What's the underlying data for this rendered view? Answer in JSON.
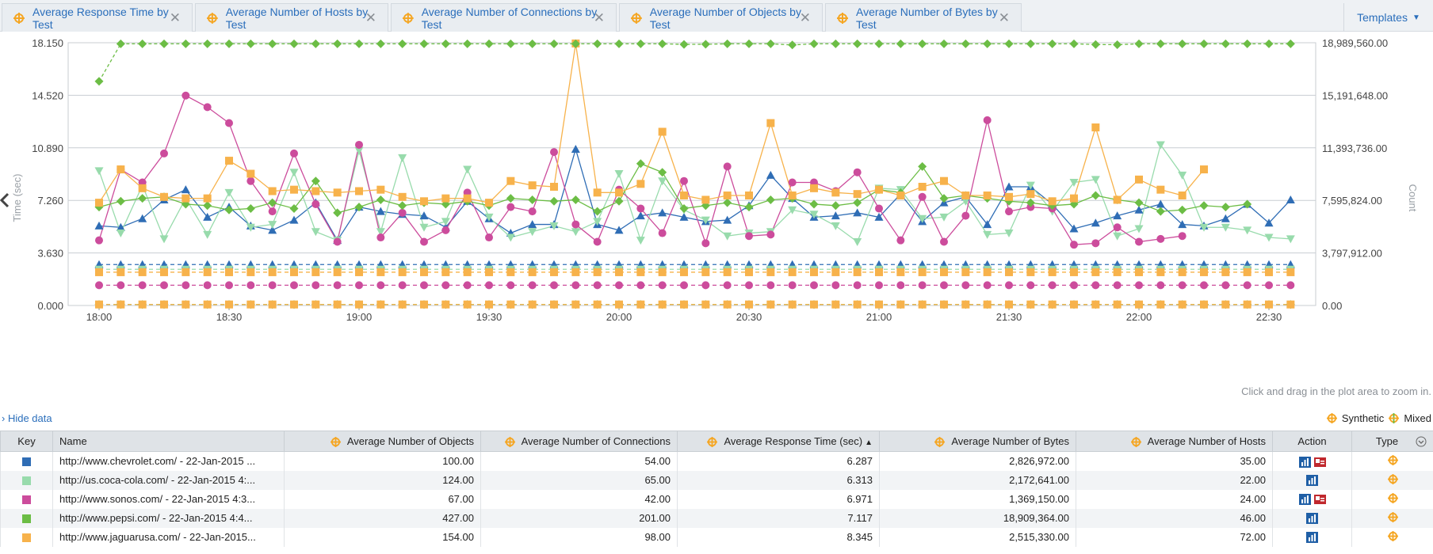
{
  "tabs": [
    {
      "label": "Average Response Time by Test"
    },
    {
      "label": "Average Number of Hosts by Test"
    },
    {
      "label": "Average Number of Connections by Test"
    },
    {
      "label": "Average Number of Objects by Test"
    },
    {
      "label": "Average Number of Bytes by Test"
    }
  ],
  "templates_label": "Templates",
  "colors": {
    "blue": "#2f6db5",
    "lightgreen": "#98dbac",
    "pink": "#cc4c9c",
    "green": "#6cbd45",
    "orange": "#f7b24b",
    "tab_icon": "#f5a623"
  },
  "chart_data": {
    "type": "line",
    "y_left": {
      "label": "Time (sec)",
      "ticks": [
        "0.000",
        "3.630",
        "7.260",
        "10.890",
        "14.520",
        "18.150"
      ],
      "range": [
        0,
        18.15
      ]
    },
    "y_right": {
      "label": "Count",
      "ticks": [
        "0.00",
        "3,797,912.00",
        "7,595,824.00",
        "11,393,736.00",
        "15,191,648.00",
        "18,989,560.00"
      ],
      "range": [
        0,
        18989560
      ]
    },
    "x_ticks": [
      "18:00",
      "18:30",
      "19:00",
      "19:30",
      "20:00",
      "20:30",
      "21:00",
      "21:30",
      "22:00",
      "22:30"
    ],
    "x_start": "18:00",
    "x_step_minutes": 5,
    "series": [
      {
        "color_key": "blue",
        "marker": "triangle",
        "axis": "left",
        "values": [
          5.5,
          5.4,
          6.0,
          7.3,
          8.0,
          6.1,
          6.8,
          5.5,
          5.2,
          5.9,
          7.1,
          4.5,
          6.8,
          6.5,
          6.3,
          6.2,
          5.4,
          7.2,
          6.0,
          5.0,
          5.6,
          5.6,
          10.8,
          5.6,
          5.2,
          6.2,
          6.4,
          6.1,
          5.8,
          5.9,
          6.9,
          9.0,
          7.4,
          6.1,
          6.2,
          6.4,
          6.1,
          7.7,
          5.8,
          7.1,
          7.5,
          5.6,
          8.2,
          8.2,
          7.0,
          5.3,
          5.7,
          6.2,
          6.6,
          7.0,
          5.6,
          5.5,
          6.0,
          7.0,
          5.7,
          7.3
        ]
      },
      {
        "color_key": "lightgreen",
        "marker": "triangle-down",
        "axis": "left",
        "values": [
          9.3,
          5.0,
          8.3,
          4.6,
          7.4,
          4.9,
          7.8,
          5.4,
          5.6,
          9.2,
          5.1,
          4.5,
          10.7,
          5.1,
          10.2,
          5.4,
          5.8,
          9.4,
          6.1,
          4.7,
          5.1,
          5.5,
          5.1,
          5.8,
          9.1,
          4.5,
          8.6,
          6.6,
          5.9,
          4.8,
          5.0,
          5.1,
          6.6,
          6.3,
          5.5,
          4.4,
          8.1,
          8.0,
          6.0,
          6.1,
          7.2,
          4.9,
          5.0,
          8.3,
          6.5,
          8.5,
          8.7,
          4.8,
          5.3,
          11.1,
          9.0,
          5.4,
          5.4,
          5.2,
          4.7,
          4.6
        ]
      },
      {
        "color_key": "pink",
        "marker": "circle",
        "axis": "left",
        "values": [
          4.5,
          9.4,
          8.5,
          10.5,
          14.5,
          13.7,
          12.6,
          8.6,
          6.5,
          10.5,
          7.0,
          4.4,
          11.1,
          4.7,
          6.4,
          4.4,
          5.2,
          7.8,
          4.7,
          6.8,
          6.5,
          10.6,
          5.6,
          4.4,
          8.0,
          6.7,
          5.0,
          8.6,
          4.3,
          9.6,
          4.8,
          4.9,
          8.5,
          8.5,
          7.9,
          9.2,
          6.7,
          4.5,
          7.5,
          4.4,
          6.2,
          12.8,
          6.5,
          6.8,
          6.7,
          4.2,
          4.3,
          5.4,
          4.4,
          4.6,
          4.8
        ]
      },
      {
        "color_key": "green",
        "marker": "diamond",
        "axis": "left",
        "values": [
          6.8,
          7.2,
          7.4,
          7.5,
          7.0,
          6.9,
          6.6,
          6.7,
          7.1,
          6.7,
          8.6,
          6.4,
          6.8,
          7.3,
          6.9,
          7.1,
          7.0,
          7.2,
          6.9,
          7.4,
          7.3,
          7.2,
          7.3,
          6.5,
          7.2,
          9.8,
          9.2,
          6.7,
          6.9,
          7.1,
          6.8,
          7.3,
          7.4,
          7.0,
          6.9,
          7.1,
          8.0,
          7.8,
          9.6,
          7.4,
          7.6,
          7.4,
          7.2,
          7.1,
          6.9,
          7.0,
          7.6,
          7.3,
          7.1,
          6.5,
          6.6,
          6.9,
          6.8,
          7.0
        ]
      },
      {
        "color_key": "orange",
        "marker": "square",
        "axis": "left",
        "values": [
          7.1,
          9.4,
          8.1,
          7.5,
          7.4,
          7.4,
          10.0,
          9.1,
          7.9,
          8.0,
          7.9,
          7.8,
          7.9,
          8.0,
          7.5,
          7.2,
          7.4,
          7.4,
          7.1,
          8.6,
          8.3,
          8.2,
          18.1,
          7.8,
          7.8,
          8.4,
          12.0,
          7.6,
          7.3,
          7.6,
          7.6,
          12.6,
          7.6,
          8.1,
          7.8,
          7.7,
          8.0,
          7.6,
          8.2,
          8.6,
          7.6,
          7.6,
          7.5,
          7.7,
          7.2,
          7.4,
          12.3,
          7.3,
          8.7,
          8.0,
          7.6,
          9.4
        ]
      },
      {
        "color_key": "green",
        "marker": "diamond",
        "axis": "right",
        "dashed_first": true,
        "values": [
          16200000,
          18909364,
          18909364,
          18909364,
          18909364,
          18909364,
          18909364,
          18909364,
          18909364,
          18909364,
          18909364,
          18909364,
          18909364,
          18909364,
          18909364,
          18909364,
          18909364,
          18909364,
          18909364,
          18909364,
          18909364,
          18909364,
          18909364,
          18909364,
          18909364,
          18909364,
          18909364,
          18870000,
          18880000,
          18909364,
          18909364,
          18909364,
          18830000,
          18909364,
          18909364,
          18909364,
          18909364,
          18909364,
          18909364,
          18909364,
          18909364,
          18909364,
          18909364,
          18909364,
          18909364,
          18909364,
          18860000,
          18850000,
          18909364,
          18909364,
          18909364,
          18909364,
          18909364,
          18909364,
          18909364,
          18909364
        ]
      },
      {
        "color_key": "blue",
        "marker": "triangle",
        "axis": "left",
        "dashed": true,
        "flat": 2.83
      },
      {
        "color_key": "lightgreen",
        "marker": "triangle-down",
        "axis": "left",
        "dashed": true,
        "flat": 2.5
      },
      {
        "color_key": "orange",
        "marker": "square",
        "axis": "left",
        "dashed": true,
        "flat": 2.3
      },
      {
        "color_key": "pink",
        "marker": "circle",
        "axis": "left",
        "dashed": true,
        "flat": 1.4
      },
      {
        "color_key": "green",
        "marker": "diamond",
        "axis": "left",
        "dashed": true,
        "flat": 0.07
      },
      {
        "color_key": "orange",
        "marker": "square",
        "axis": "left",
        "dashed": true,
        "flat": 0.07
      }
    ]
  },
  "zoom_hint": "Click and drag in the plot area to zoom in.",
  "hide_data_label": "› Hide data",
  "type_legend": {
    "synthetic": "Synthetic",
    "mixed": "Mixed"
  },
  "table": {
    "headers": {
      "key": "Key",
      "name": "Name",
      "objects": "Average Number of Objects",
      "connections": "Average Number of Connections",
      "response": "Average Response Time (sec)",
      "bytes": "Average Number of Bytes",
      "hosts": "Average Number of Hosts",
      "action": "Action",
      "type": "Type"
    },
    "rows": [
      {
        "color_key": "blue",
        "name": "http://www.chevrolet.com/ - 22-Jan-2015 ...",
        "objects": "100.00",
        "connections": "54.00",
        "response": "6.287",
        "bytes": "2,826,972.00",
        "hosts": "35.00",
        "has_pdf": true
      },
      {
        "color_key": "lightgreen",
        "name": "http://us.coca-cola.com/ - 22-Jan-2015 4:...",
        "objects": "124.00",
        "connections": "65.00",
        "response": "6.313",
        "bytes": "2,172,641.00",
        "hosts": "22.00",
        "has_pdf": false
      },
      {
        "color_key": "pink",
        "name": "http://www.sonos.com/ - 22-Jan-2015 4:3...",
        "objects": "67.00",
        "connections": "42.00",
        "response": "6.971",
        "bytes": "1,369,150.00",
        "hosts": "24.00",
        "has_pdf": true
      },
      {
        "color_key": "green",
        "name": "http://www.pepsi.com/ - 22-Jan-2015 4:4...",
        "objects": "427.00",
        "connections": "201.00",
        "response": "7.117",
        "bytes": "18,909,364.00",
        "hosts": "46.00",
        "has_pdf": false
      },
      {
        "color_key": "orange",
        "name": "http://www.jaguarusa.com/ - 22-Jan-2015...",
        "objects": "154.00",
        "connections": "98.00",
        "response": "8.345",
        "bytes": "2,515,330.00",
        "hosts": "72.00",
        "has_pdf": false
      }
    ]
  }
}
